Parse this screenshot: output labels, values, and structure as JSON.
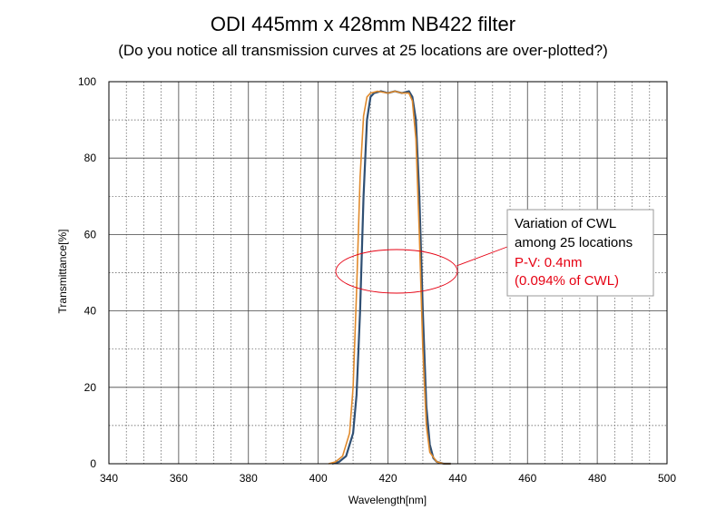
{
  "chart_data": {
    "type": "line",
    "title": "ODI 445mm x 428mm NB422 filter",
    "subtitle": "(Do you notice all transmission curves at 25 locations are over-plotted?)",
    "xlabel": "Wavelength[nm]",
    "ylabel": "Transmittance[%]",
    "xlim": [
      340,
      500
    ],
    "ylim": [
      0,
      100
    ],
    "xticks": [
      "340",
      "360",
      "380",
      "400",
      "420",
      "440",
      "460",
      "480",
      "500"
    ],
    "yticks": [
      "0",
      "20",
      "40",
      "60",
      "80",
      "100"
    ],
    "grid": true,
    "series": [
      {
        "color": "#2f4f73",
        "x": [
          404,
          406,
          408,
          410,
          411,
          412,
          413,
          414,
          415,
          416,
          418,
          420,
          422,
          424,
          426,
          427,
          428,
          429,
          430,
          431,
          432,
          433,
          434,
          436,
          438
        ],
        "y": [
          0,
          0.5,
          2,
          8,
          18,
          40,
          70,
          90,
          96,
          97,
          97.5,
          97,
          97.5,
          97,
          97.5,
          96,
          90,
          70,
          40,
          15,
          5,
          1.5,
          0.5,
          0,
          0
        ]
      },
      {
        "color": "#e08a2c",
        "x": [
          403,
          405,
          407,
          409,
          410,
          411,
          412,
          413,
          414,
          415,
          417,
          420,
          422,
          424,
          426,
          427,
          428,
          429,
          430,
          431,
          432,
          434,
          436,
          438
        ],
        "y": [
          0,
          0.5,
          2,
          8,
          20,
          45,
          75,
          91,
          96,
          97,
          97.5,
          97,
          97.5,
          97,
          97,
          95,
          85,
          60,
          30,
          10,
          3,
          0.5,
          0,
          0
        ]
      }
    ],
    "annotations": {
      "line1": "Variation of CWL",
      "line2": "among 25 locations",
      "line3": "P-V: 0.4nm",
      "line4": "(0.094% of CWL)"
    }
  },
  "colors": {
    "highlight": "#e60012",
    "grid": "#555555"
  }
}
